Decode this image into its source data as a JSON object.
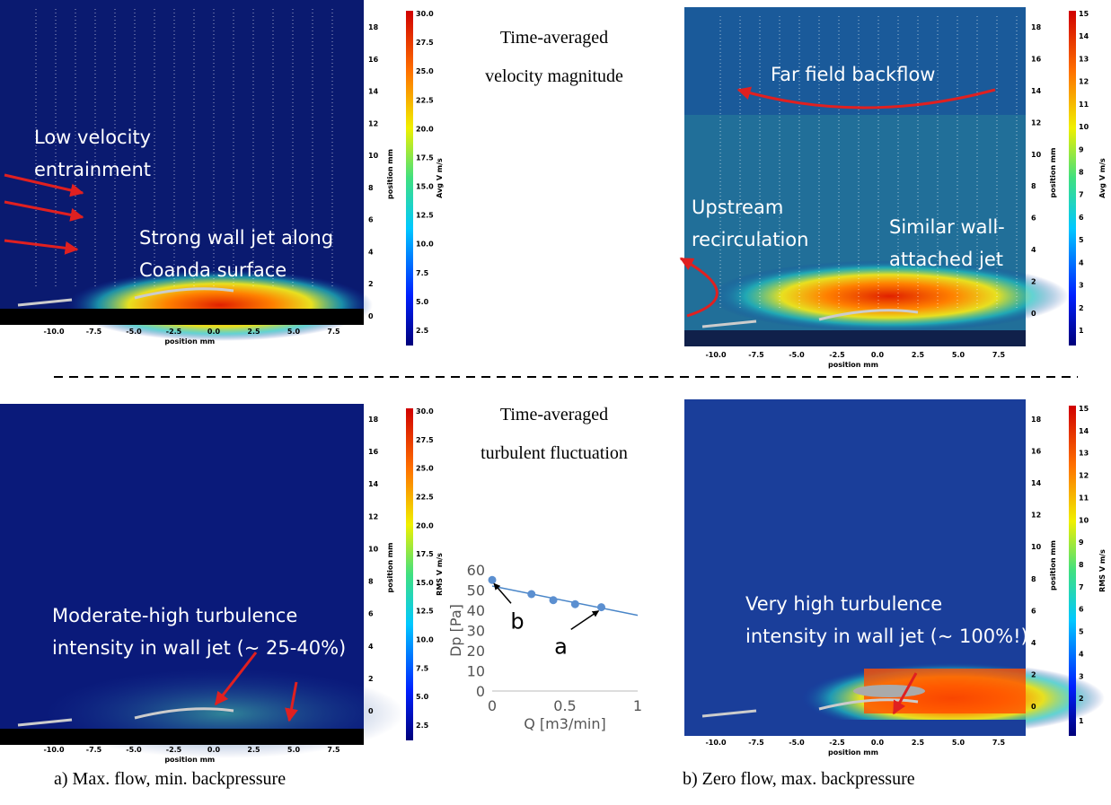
{
  "center_labels": {
    "top": [
      "Time-averaged",
      "velocity magnitude"
    ],
    "bottom": [
      "Time-averaged",
      "turbulent fluctuation"
    ]
  },
  "panels": [
    {
      "x_label": "position mm",
      "y_label": "position mm",
      "x_ticks": [
        "-10.0",
        "-7.5",
        "-5.0",
        "-2.5",
        "0.0",
        "2.5",
        "5.0",
        "7.5"
      ],
      "y_ticks": [
        "18",
        "16",
        "14",
        "12",
        "10",
        "8",
        "6",
        "4",
        "2",
        "0"
      ],
      "colorbar": {
        "label": "Avg V m/s",
        "ticks": [
          "30.0",
          "27.5",
          "25.0",
          "22.5",
          "20.0",
          "17.5",
          "15.0",
          "12.5",
          "10.0",
          "7.5",
          "5.0",
          "2.5"
        ]
      },
      "annotations": [
        [
          "Low velocity",
          "entrainment"
        ],
        [
          "Strong wall jet along",
          "Coanda surface"
        ]
      ]
    },
    {
      "x_label": "position mm",
      "y_label": "position mm",
      "x_ticks": [
        "-10.0",
        "-7.5",
        "-5.0",
        "-2.5",
        "0.0",
        "2.5",
        "5.0",
        "7.5"
      ],
      "y_ticks": [
        "18",
        "16",
        "14",
        "12",
        "10",
        "8",
        "6",
        "4",
        "2",
        "0"
      ],
      "colorbar": {
        "label": "Avg V m/s",
        "ticks": [
          "15",
          "14",
          "13",
          "12",
          "11",
          "10",
          "9",
          "8",
          "7",
          "6",
          "5",
          "4",
          "3",
          "2",
          "1"
        ]
      },
      "annotations": [
        [
          "Far field backflow"
        ],
        [
          "Upstream",
          "recirculation"
        ],
        [
          "Similar wall-",
          "attached jet"
        ]
      ]
    },
    {
      "x_label": "position mm",
      "y_label": "position mm",
      "x_ticks": [
        "-10.0",
        "-7.5",
        "-5.0",
        "-2.5",
        "0.0",
        "2.5",
        "5.0",
        "7.5"
      ],
      "y_ticks": [
        "18",
        "16",
        "14",
        "12",
        "10",
        "8",
        "6",
        "4",
        "2",
        "0"
      ],
      "colorbar": {
        "label": "RMS V m/s",
        "ticks": [
          "30.0",
          "27.5",
          "25.0",
          "22.5",
          "20.0",
          "17.5",
          "15.0",
          "12.5",
          "10.0",
          "7.5",
          "5.0",
          "2.5"
        ]
      },
      "annotations": [
        [
          "Moderate-high turbulence",
          "intensity in wall jet (~ 25-40%)"
        ]
      ]
    },
    {
      "x_label": "position mm",
      "y_label": "position mm",
      "x_ticks": [
        "-10.0",
        "-7.5",
        "-5.0",
        "-2.5",
        "0.0",
        "2.5",
        "5.0",
        "7.5"
      ],
      "y_ticks": [
        "18",
        "16",
        "14",
        "12",
        "10",
        "8",
        "6",
        "4",
        "2",
        "0"
      ],
      "colorbar": {
        "label": "RMS V m/s",
        "ticks": [
          "15",
          "14",
          "13",
          "12",
          "11",
          "10",
          "9",
          "8",
          "7",
          "6",
          "5",
          "4",
          "3",
          "2",
          "1"
        ]
      },
      "annotations": [
        [
          "Very high turbulence",
          "intensity in wall jet (~ 100%!)"
        ]
      ]
    }
  ],
  "captions": [
    "a) Max. flow, min. backpressure",
    "b) Zero flow, max. backpressure"
  ],
  "chart_data": {
    "type": "scatter",
    "x_label": "Q [m3/min]",
    "y_label": "Dp [Pa]",
    "x": [
      0,
      0.27,
      0.42,
      0.57,
      0.75
    ],
    "values": [
      55,
      48,
      45,
      43,
      41.5
    ],
    "color": "#5b8fd0",
    "trendline": {
      "x": [
        0,
        1
      ],
      "values": [
        52,
        37.5
      ],
      "color": "#4a86c8"
    },
    "xlim": [
      0,
      1
    ],
    "xticks": [
      0,
      0.5,
      1
    ],
    "ylim": [
      0,
      60
    ],
    "yticks": [
      0,
      10,
      20,
      30,
      40,
      50,
      60
    ],
    "annotations": [
      {
        "text": "b",
        "x": 0,
        "y": 55
      },
      {
        "text": "a",
        "x": 0.75,
        "y": 41.5
      }
    ]
  }
}
